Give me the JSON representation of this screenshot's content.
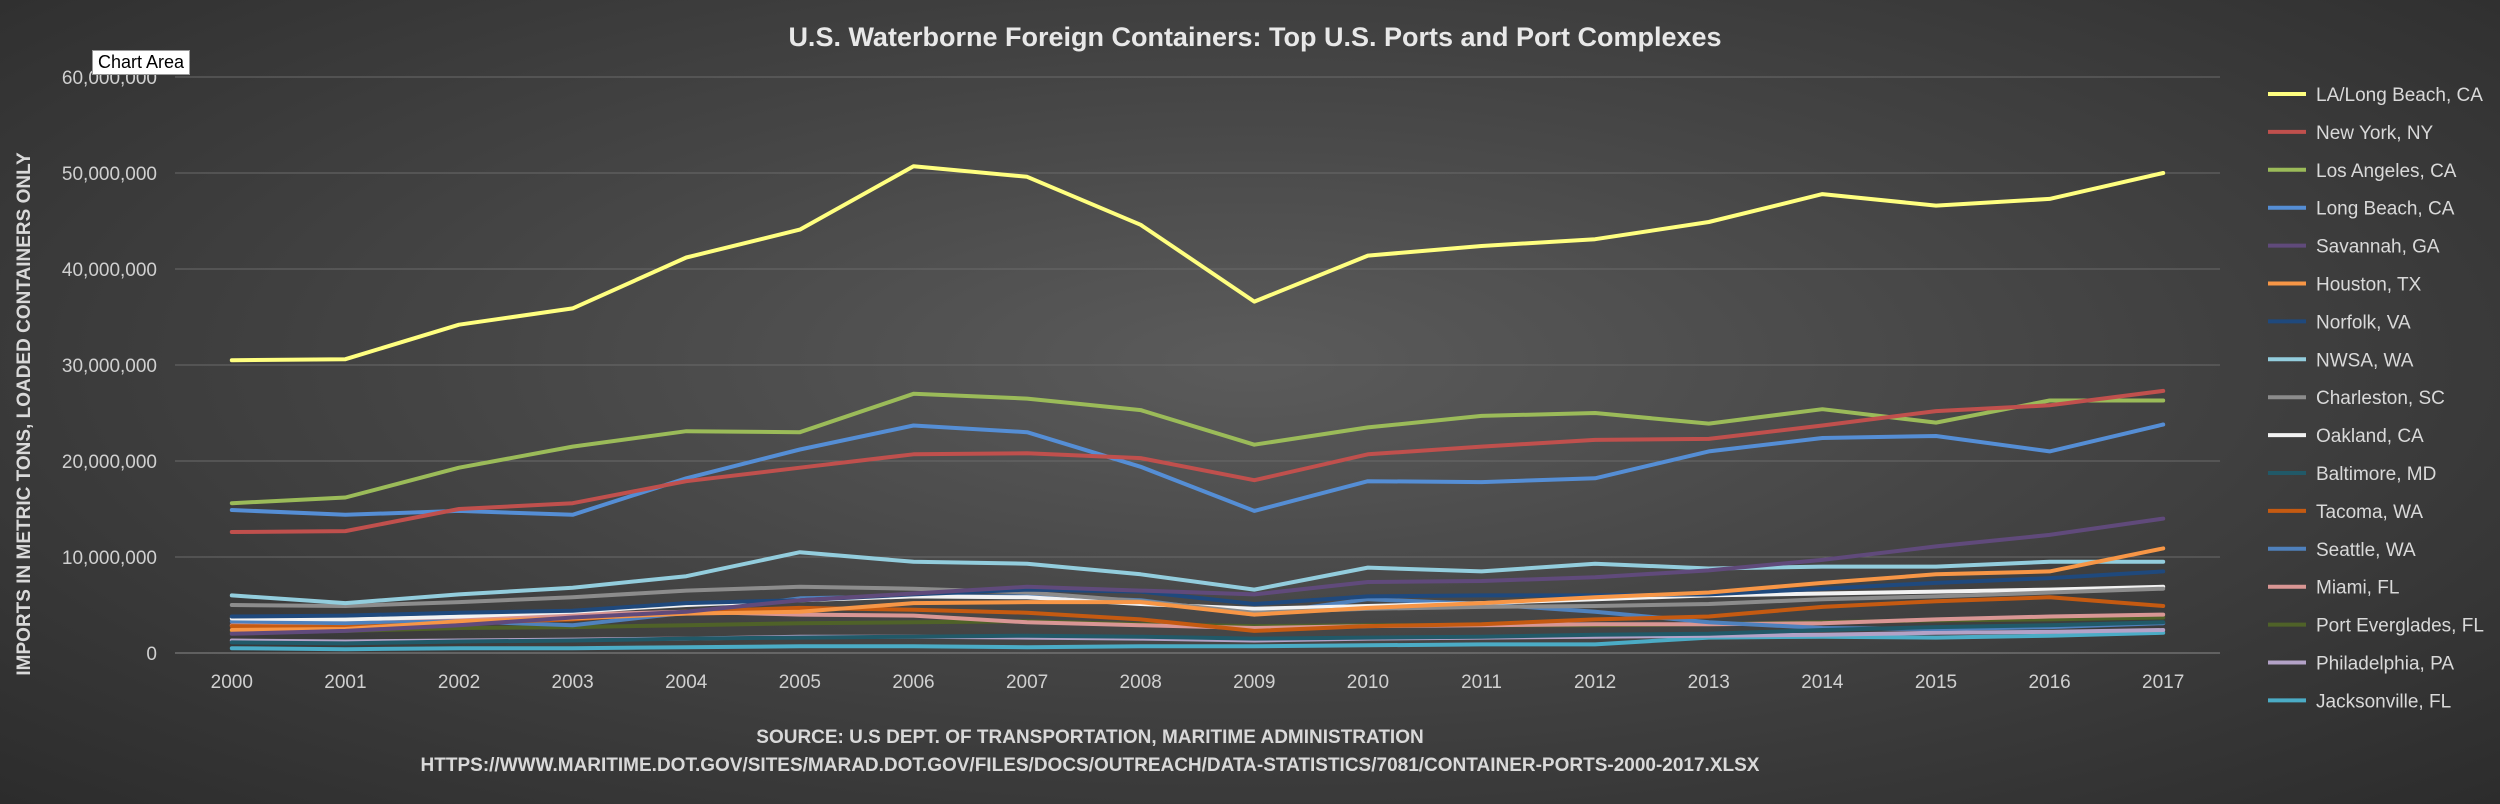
{
  "tooltip": "Chart Area",
  "source_line1": "SOURCE: U.S DEPT. OF TRANSPORTATION, MARITIME ADMINISTRATION",
  "source_line2": "HTTPS://WWW.MARITIME.DOT.GOV/SITES/MARAD.DOT.GOV/FILES/DOCS/OUTREACH/DATA-STATISTICS/7081/CONTAINER-PORTS-2000-2017.XLSX",
  "chart_data": {
    "type": "line",
    "title": "U.S. Waterborne Foreign Containers: Top U.S. Ports and Port Complexes",
    "xlabel": "",
    "ylabel": "IMPORTS IN METRIC TONS, LOADED CONTAINERS ONLY",
    "ylim": [
      0,
      60000000
    ],
    "yticks": [
      0,
      10000000,
      20000000,
      30000000,
      40000000,
      50000000,
      60000000
    ],
    "ytick_labels": [
      "0",
      "10,000,000",
      "20,000,000",
      "30,000,000",
      "40,000,000",
      "50,000,000",
      "60,000,000"
    ],
    "grid": true,
    "legend_position": "right",
    "categories": [
      "2000",
      "2001",
      "2002",
      "2003",
      "2004",
      "2005",
      "2006",
      "2007",
      "2008",
      "2009",
      "2010",
      "2011",
      "2012",
      "2013",
      "2014",
      "2015",
      "2016",
      "2017"
    ],
    "series": [
      {
        "name": "LA/Long Beach, CA",
        "color": "#ffff80",
        "values": [
          30500000,
          30600000,
          34200000,
          35900000,
          41200000,
          44100000,
          50700000,
          49600000,
          44600000,
          36600000,
          41400000,
          42400000,
          43100000,
          44900000,
          47800000,
          46600000,
          47300000,
          50000000
        ]
      },
      {
        "name": "New York, NY",
        "color": "#c0504d",
        "values": [
          12600000,
          12700000,
          15000000,
          15600000,
          17900000,
          19300000,
          20700000,
          20800000,
          20300000,
          18000000,
          20700000,
          21500000,
          22200000,
          22300000,
          23700000,
          25200000,
          25800000,
          27300000
        ]
      },
      {
        "name": "Los Angeles, CA",
        "color": "#9bbb59",
        "values": [
          15600000,
          16200000,
          19300000,
          21500000,
          23100000,
          23000000,
          27000000,
          26500000,
          25300000,
          21700000,
          23500000,
          24700000,
          25000000,
          23900000,
          25400000,
          24000000,
          26300000,
          26300000
        ]
      },
      {
        "name": "Long Beach, CA",
        "color": "#558ed5",
        "values": [
          14900000,
          14400000,
          14800000,
          14400000,
          18200000,
          21200000,
          23700000,
          23000000,
          19400000,
          14800000,
          17900000,
          17800000,
          18200000,
          21000000,
          22400000,
          22600000,
          21000000,
          23800000
        ]
      },
      {
        "name": "Savannah, GA",
        "color": "#604a7b",
        "values": [
          2000000,
          2300000,
          2900000,
          3700000,
          4300000,
          5500000,
          6200000,
          6900000,
          6500000,
          6100000,
          7400000,
          7500000,
          7900000,
          8600000,
          9700000,
          11100000,
          12300000,
          14000000
        ]
      },
      {
        "name": "Houston, TX",
        "color": "#f79646",
        "values": [
          2400000,
          2500000,
          3300000,
          3600000,
          4100000,
          4300000,
          5200000,
          5300000,
          5300000,
          4000000,
          4700000,
          5200000,
          5800000,
          6300000,
          7300000,
          8200000,
          8500000,
          10900000
        ]
      },
      {
        "name": "Norfolk, VA",
        "color": "#1f497d",
        "values": [
          3800000,
          3900000,
          4200000,
          4400000,
          5200000,
          5500000,
          6100000,
          6600000,
          6400000,
          5100000,
          5900000,
          6000000,
          6000000,
          6100000,
          6700000,
          7300000,
          7800000,
          8500000
        ]
      },
      {
        "name": "NWSA, WA",
        "color": "#93cddd",
        "values": [
          6000000,
          5200000,
          6100000,
          6800000,
          8000000,
          10500000,
          9500000,
          9300000,
          8200000,
          6600000,
          8900000,
          8500000,
          9300000,
          8800000,
          9000000,
          9000000,
          9500000,
          9500000
        ]
      },
      {
        "name": "Charleston, SC",
        "color": "#8c8c8c",
        "values": [
          5000000,
          4900000,
          5300000,
          5800000,
          6500000,
          6900000,
          6700000,
          6300000,
          5400000,
          4200000,
          4600000,
          4800000,
          4900000,
          5100000,
          5600000,
          5900000,
          6300000,
          6700000
        ]
      },
      {
        "name": "Oakland, CA",
        "color": "#f2f2f2",
        "values": [
          3600000,
          3500000,
          3800000,
          4300000,
          5000000,
          5500000,
          5900000,
          5800000,
          5100000,
          4600000,
          4900000,
          5200000,
          5600000,
          6000000,
          6200000,
          6400000,
          6600000,
          6900000
        ]
      },
      {
        "name": "Baltimore, MD",
        "color": "#215968",
        "values": [
          1100000,
          1000000,
          1200000,
          1300000,
          1500000,
          1600000,
          1700000,
          1800000,
          1700000,
          1500000,
          1600000,
          1700000,
          1900000,
          2000000,
          2400000,
          2700000,
          2900000,
          3200000
        ]
      },
      {
        "name": "Tacoma, WA",
        "color": "#c55a11",
        "values": [
          2800000,
          2700000,
          3100000,
          3500000,
          4300000,
          4700000,
          4500000,
          4200000,
          3500000,
          2300000,
          2800000,
          3000000,
          3500000,
          3800000,
          4800000,
          5400000,
          5800000,
          4900000
        ]
      },
      {
        "name": "Seattle, WA",
        "color": "#4f81bd",
        "values": [
          3300000,
          3100000,
          3300000,
          2900000,
          4200000,
          5700000,
          5900000,
          5900000,
          5500000,
          4000000,
          5600000,
          5100000,
          4300000,
          3200000,
          2600000,
          2500000,
          2700000,
          3100000
        ]
      },
      {
        "name": "Miami, FL",
        "color": "#d99694",
        "values": [
          2900000,
          3000000,
          3600000,
          4000000,
          4300000,
          4000000,
          3900000,
          3200000,
          2900000,
          2600000,
          2800000,
          2900000,
          3000000,
          3000000,
          3100000,
          3500000,
          3800000,
          4000000
        ]
      },
      {
        "name": "Port Everglades, FL",
        "color": "#4f6228",
        "values": [
          2200000,
          2300000,
          2600000,
          2700000,
          2900000,
          3100000,
          3200000,
          3300000,
          3000000,
          2800000,
          2900000,
          2900000,
          2900000,
          3000000,
          3200000,
          3400000,
          3500000,
          3700000
        ]
      },
      {
        "name": "Philadelphia, PA",
        "color": "#b3a2c7",
        "values": [
          1300000,
          1200000,
          1300000,
          1400000,
          1500000,
          1700000,
          1700000,
          1600000,
          1500000,
          1300000,
          1500000,
          1600000,
          1700000,
          1800000,
          1900000,
          2100000,
          2200000,
          2400000
        ]
      },
      {
        "name": "Jacksonville, FL",
        "color": "#4bacc6",
        "values": [
          500000,
          400000,
          500000,
          500000,
          600000,
          700000,
          700000,
          600000,
          700000,
          700000,
          800000,
          900000,
          900000,
          1600000,
          1700000,
          1600000,
          1800000,
          2100000
        ]
      }
    ]
  }
}
